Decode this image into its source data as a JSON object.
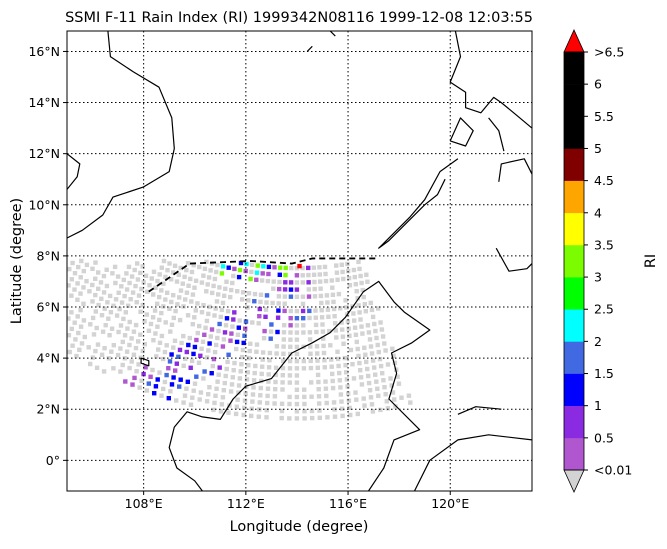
{
  "title": "SSMI F-11 Rain Index (RI) 1999342N08116 1999-12-08 12:03:55",
  "map": {
    "xlabel": "Longitude (degree)",
    "ylabel": "Latitude (degree)",
    "lon_range": [
      105.0,
      123.2
    ],
    "lat_range": [
      -1.2,
      16.8
    ],
    "lon_ticks": [
      {
        "value": 108,
        "label": "108°E"
      },
      {
        "value": 112,
        "label": "112°E"
      },
      {
        "value": 116,
        "label": "116°E"
      },
      {
        "value": 120,
        "label": "120°E"
      }
    ],
    "lat_ticks": [
      {
        "value": 0,
        "label": "0°"
      },
      {
        "value": 2,
        "label": "2°N"
      },
      {
        "value": 4,
        "label": "4°N"
      },
      {
        "value": 6,
        "label": "6°N"
      },
      {
        "value": 8,
        "label": "8°N"
      },
      {
        "value": 10,
        "label": "10°N"
      },
      {
        "value": 12,
        "label": "12°N"
      },
      {
        "value": 14,
        "label": "14°N"
      },
      {
        "value": 16,
        "label": "16°N"
      }
    ],
    "grid": true,
    "swath_edge_lat": 7.8
  },
  "colorbar": {
    "label": "RI",
    "under_color": "#d3d3d3",
    "over_color": "#ff0000",
    "bands": [
      {
        "color": "#b057d0"
      },
      {
        "color": "#8a2be2"
      },
      {
        "color": "#0000ff"
      },
      {
        "color": "#4169e1"
      },
      {
        "color": "#00ffff"
      },
      {
        "color": "#00ff00"
      },
      {
        "color": "#7cfc00"
      },
      {
        "color": "#ffff00"
      },
      {
        "color": "#ffa500"
      },
      {
        "color": "#800000"
      },
      {
        "color": "#000000"
      },
      {
        "color": "#000000"
      },
      {
        "color": "#000000"
      }
    ],
    "tick_labels": [
      "<0.01",
      "0.5",
      "1",
      "1.5",
      "2",
      "2.5",
      "3",
      "3.5",
      "4",
      "4.5",
      "5",
      "5.5",
      "6",
      ">6.5"
    ]
  },
  "colors": {
    "swath_gray": "#d3d3d3",
    "coast": "#000000"
  }
}
